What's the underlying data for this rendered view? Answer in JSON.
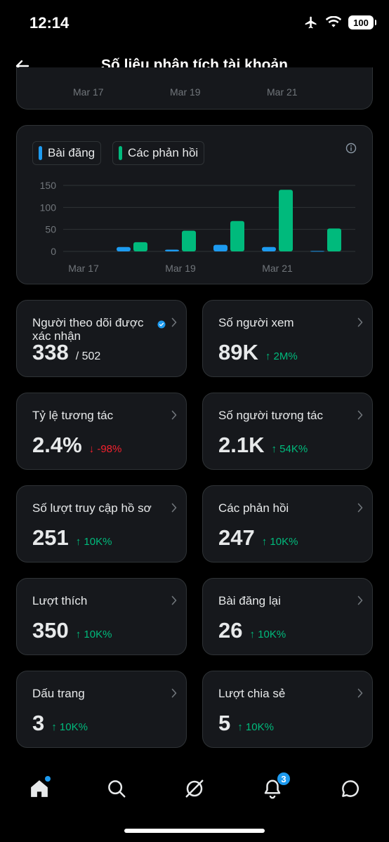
{
  "status_bar": {
    "time": "12:14",
    "battery": "100"
  },
  "header": {
    "title": "Số liệu phân tích tài khoản"
  },
  "top_chart_ticks": [
    "Mar 17",
    "Mar 19",
    "Mar 21"
  ],
  "legend": [
    {
      "label": "Bài đăng",
      "color": "#1d9bf0"
    },
    {
      "label": "Các phản hồi",
      "color": "#00ba7c"
    }
  ],
  "chart_data": {
    "type": "bar",
    "x_ticks": [
      "Mar 17",
      "Mar 19",
      "Mar 21"
    ],
    "y_ticks": [
      150,
      100,
      50,
      0
    ],
    "ylim": [
      0,
      150
    ],
    "grid": true,
    "legend_position": "top-left",
    "series": [
      {
        "name": "Bài đăng",
        "color": "#1d9bf0",
        "values": [
          0,
          10,
          4,
          15,
          10,
          1
        ]
      },
      {
        "name": "Các phản hồi",
        "color": "#00ba7c",
        "values": [
          0,
          21,
          47,
          69,
          140,
          52
        ]
      }
    ]
  },
  "metrics": [
    {
      "label": "Người theo dõi được xác nhận",
      "value": "338",
      "sub": "/ 502",
      "delta": "",
      "verified": true
    },
    {
      "label": "Số người xem",
      "value": "89K",
      "delta": "↑ 2M%",
      "direction": "up"
    },
    {
      "label": "Tỷ lệ tương tác",
      "value": "2.4%",
      "delta": "↓ -98%",
      "direction": "down"
    },
    {
      "label": "Số người tương tác",
      "value": "2.1K",
      "delta": "↑ 54K%",
      "direction": "up"
    },
    {
      "label": "Số lượt truy cập hồ sơ",
      "value": "251",
      "delta": "↑ 10K%",
      "direction": "up"
    },
    {
      "label": "Các phản hồi",
      "value": "247",
      "delta": "↑ 10K%",
      "direction": "up"
    },
    {
      "label": "Lượt thích",
      "value": "350",
      "delta": "↑ 10K%",
      "direction": "up"
    },
    {
      "label": "Bài đăng lại",
      "value": "26",
      "delta": "↑ 10K%",
      "direction": "up"
    },
    {
      "label": "Dấu trang",
      "value": "3",
      "delta": "↑ 10K%",
      "direction": "up"
    },
    {
      "label": "Lượt chia sẻ",
      "value": "5",
      "delta": "↑ 10K%",
      "direction": "up"
    }
  ],
  "nav": {
    "notifications_badge": "3"
  },
  "colors": {
    "accent": "#1d9bf0",
    "positive": "#00ba7c",
    "negative": "#f4212e"
  }
}
